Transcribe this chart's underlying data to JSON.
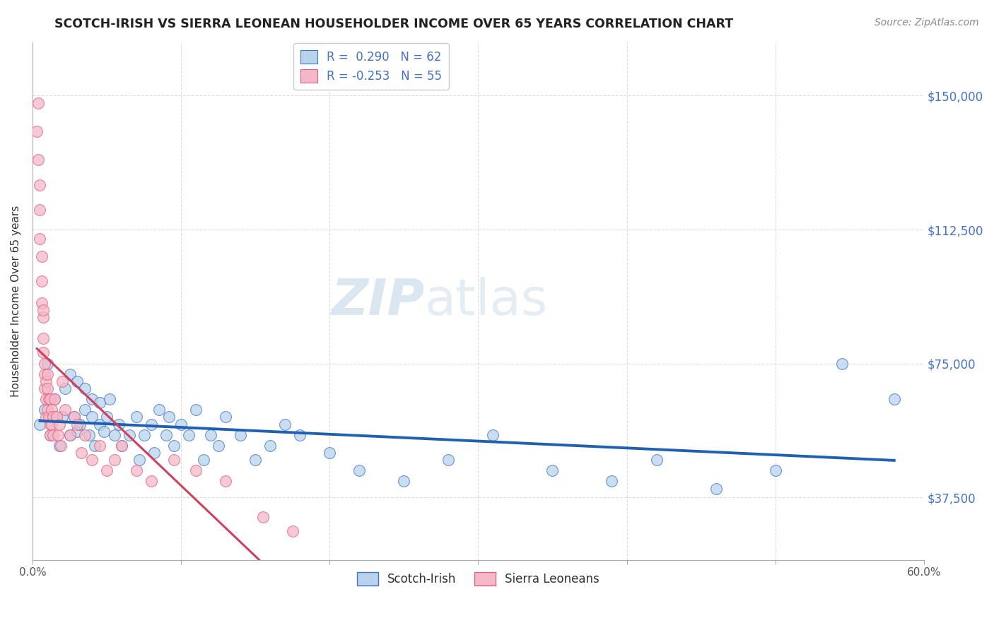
{
  "title": "SCOTCH-IRISH VS SIERRA LEONEAN HOUSEHOLDER INCOME OVER 65 YEARS CORRELATION CHART",
  "source": "Source: ZipAtlas.com",
  "ylabel": "Householder Income Over 65 years",
  "xlim": [
    0.0,
    0.6
  ],
  "ylim": [
    20000,
    165000
  ],
  "xtick_positions": [
    0.0,
    0.1,
    0.2,
    0.3,
    0.4,
    0.5,
    0.6
  ],
  "xticklabels": [
    "0.0%",
    "",
    "",
    "",
    "",
    "",
    "60.0%"
  ],
  "yticks_right": [
    37500,
    75000,
    112500,
    150000
  ],
  "ytick_labels_right": [
    "$37,500",
    "$75,000",
    "$112,500",
    "$150,000"
  ],
  "watermark_zip": "ZIP",
  "watermark_atlas": "atlas",
  "legend_blue_r": " 0.290",
  "legend_blue_n": "62",
  "legend_pink_r": "-0.253",
  "legend_pink_n": "55",
  "blue_fill": "#b8d4ed",
  "blue_edge": "#4472c4",
  "blue_line": "#2060b0",
  "pink_fill": "#f4b8c8",
  "pink_edge": "#e06080",
  "pink_line": "#d04060",
  "dashed_line_color": "#ddbbcc",
  "grid_color": "#dddddd",
  "bg_color": "#ffffff",
  "scotch_irish_x": [
    0.005,
    0.008,
    0.01,
    0.012,
    0.015,
    0.018,
    0.02,
    0.022,
    0.025,
    0.025,
    0.028,
    0.03,
    0.03,
    0.032,
    0.035,
    0.035,
    0.038,
    0.04,
    0.04,
    0.042,
    0.045,
    0.045,
    0.048,
    0.05,
    0.052,
    0.055,
    0.058,
    0.06,
    0.065,
    0.07,
    0.072,
    0.075,
    0.08,
    0.082,
    0.085,
    0.09,
    0.092,
    0.095,
    0.1,
    0.105,
    0.11,
    0.115,
    0.12,
    0.125,
    0.13,
    0.14,
    0.15,
    0.16,
    0.17,
    0.18,
    0.2,
    0.22,
    0.25,
    0.28,
    0.31,
    0.35,
    0.39,
    0.42,
    0.46,
    0.5,
    0.545,
    0.58
  ],
  "scotch_irish_y": [
    58000,
    62000,
    75000,
    55000,
    65000,
    52000,
    60000,
    68000,
    55000,
    72000,
    60000,
    56000,
    70000,
    58000,
    62000,
    68000,
    55000,
    60000,
    65000,
    52000,
    58000,
    64000,
    56000,
    60000,
    65000,
    55000,
    58000,
    52000,
    55000,
    60000,
    48000,
    55000,
    58000,
    50000,
    62000,
    55000,
    60000,
    52000,
    58000,
    55000,
    62000,
    48000,
    55000,
    52000,
    60000,
    55000,
    48000,
    52000,
    58000,
    55000,
    50000,
    45000,
    42000,
    48000,
    55000,
    45000,
    42000,
    48000,
    40000,
    45000,
    75000,
    65000
  ],
  "sierra_leone_x": [
    0.003,
    0.004,
    0.004,
    0.005,
    0.005,
    0.005,
    0.006,
    0.006,
    0.006,
    0.007,
    0.007,
    0.007,
    0.007,
    0.008,
    0.008,
    0.008,
    0.009,
    0.009,
    0.009,
    0.01,
    0.01,
    0.01,
    0.011,
    0.011,
    0.012,
    0.012,
    0.012,
    0.013,
    0.013,
    0.014,
    0.014,
    0.015,
    0.016,
    0.017,
    0.018,
    0.019,
    0.02,
    0.022,
    0.025,
    0.028,
    0.03,
    0.033,
    0.035,
    0.04,
    0.045,
    0.05,
    0.055,
    0.06,
    0.07,
    0.08,
    0.095,
    0.11,
    0.13,
    0.155,
    0.175
  ],
  "sierra_leone_y": [
    140000,
    148000,
    132000,
    125000,
    118000,
    110000,
    105000,
    98000,
    92000,
    88000,
    82000,
    78000,
    90000,
    75000,
    72000,
    68000,
    70000,
    65000,
    60000,
    72000,
    68000,
    62000,
    65000,
    60000,
    65000,
    58000,
    55000,
    62000,
    58000,
    55000,
    60000,
    65000,
    60000,
    55000,
    58000,
    52000,
    70000,
    62000,
    55000,
    60000,
    58000,
    50000,
    55000,
    48000,
    52000,
    45000,
    48000,
    52000,
    45000,
    42000,
    48000,
    45000,
    42000,
    32000,
    28000
  ]
}
